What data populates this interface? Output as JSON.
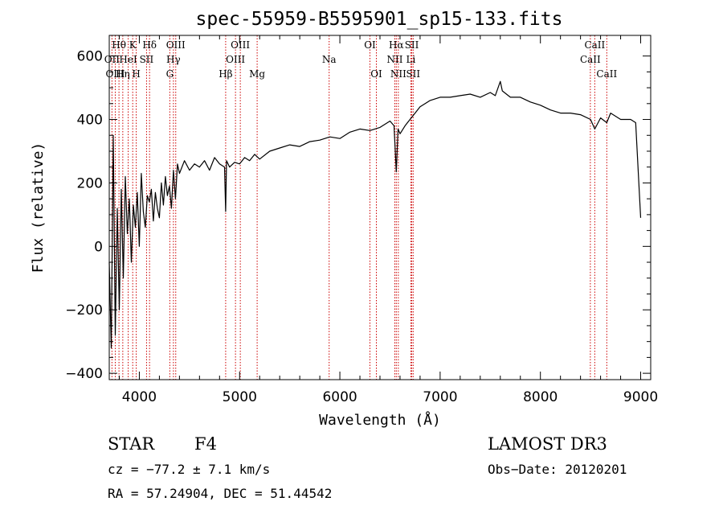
{
  "chart_data": {
    "type": "line",
    "title": "spec-55959-B5595901_sp15-133.fits",
    "xlabel": "Wavelength (Å)",
    "ylabel": "Flux (relative)",
    "xlim": [
      3700,
      9100
    ],
    "ylim": [
      -420,
      665
    ],
    "xticks": [
      4000,
      5000,
      6000,
      7000,
      8000,
      9000
    ],
    "yticks": [
      -400,
      -200,
      0,
      200,
      400,
      600
    ],
    "grid": false,
    "line_color": "#000000",
    "marker_color": "#cc0000",
    "series": [
      {
        "name": "flux",
        "x": [
          3700,
          3720,
          3740,
          3760,
          3780,
          3800,
          3820,
          3840,
          3860,
          3880,
          3900,
          3920,
          3940,
          3960,
          3980,
          4000,
          4020,
          4040,
          4060,
          4080,
          4100,
          4120,
          4140,
          4160,
          4180,
          4200,
          4220,
          4240,
          4260,
          4280,
          4300,
          4320,
          4340,
          4360,
          4380,
          4400,
          4450,
          4500,
          4550,
          4600,
          4650,
          4700,
          4750,
          4800,
          4850,
          4861,
          4870,
          4900,
          4950,
          5000,
          5050,
          5100,
          5150,
          5200,
          5300,
          5400,
          5500,
          5600,
          5700,
          5800,
          5900,
          6000,
          6100,
          6200,
          6300,
          6400,
          6500,
          6540,
          6563,
          6580,
          6600,
          6650,
          6700,
          6750,
          6800,
          6900,
          7000,
          7100,
          7200,
          7300,
          7400,
          7500,
          7550,
          7600,
          7620,
          7700,
          7800,
          7900,
          8000,
          8100,
          8200,
          8300,
          8400,
          8500,
          8542,
          8600,
          8662,
          8700,
          8800,
          8900,
          8950,
          9000
        ],
        "y": [
          -50,
          -320,
          350,
          -280,
          120,
          -200,
          180,
          -100,
          220,
          40,
          150,
          -50,
          130,
          60,
          170,
          0,
          230,
          110,
          60,
          160,
          140,
          180,
          80,
          170,
          120,
          90,
          200,
          130,
          220,
          160,
          190,
          120,
          240,
          150,
          260,
          230,
          270,
          240,
          260,
          250,
          270,
          240,
          280,
          260,
          250,
          110,
          270,
          250,
          265,
          260,
          280,
          270,
          290,
          275,
          300,
          310,
          320,
          315,
          330,
          335,
          345,
          340,
          360,
          370,
          365,
          375,
          395,
          380,
          235,
          370,
          355,
          380,
          400,
          420,
          440,
          460,
          470,
          470,
          475,
          480,
          470,
          485,
          475,
          520,
          490,
          470,
          470,
          455,
          445,
          430,
          420,
          420,
          415,
          400,
          370,
          405,
          390,
          420,
          400,
          400,
          390,
          90
        ]
      }
    ],
    "lines": [
      {
        "label": "Hθ",
        "x": 3797,
        "row": 1
      },
      {
        "label": "OII",
        "x": 3727,
        "row": 2
      },
      {
        "label": "OIII",
        "x": 3760,
        "row": 3
      },
      {
        "label": "Hη",
        "x": 3835,
        "row": 3
      },
      {
        "label": "HeI",
        "x": 3889,
        "row": 2
      },
      {
        "label": "K",
        "x": 3934,
        "row": 1
      },
      {
        "label": "H",
        "x": 3969,
        "row": 3
      },
      {
        "label": "SII",
        "x": 4072,
        "row": 2
      },
      {
        "label": "Hδ",
        "x": 4102,
        "row": 1
      },
      {
        "label": "OIII",
        "x": 4363,
        "row": 1
      },
      {
        "label": "Hγ",
        "x": 4340,
        "row": 2
      },
      {
        "label": "G",
        "x": 4304,
        "row": 3
      },
      {
        "label": "OIII",
        "x": 5007,
        "row": 1
      },
      {
        "label": "OIII",
        "x": 4959,
        "row": 2
      },
      {
        "label": "Hβ",
        "x": 4861,
        "row": 3
      },
      {
        "label": "Mg",
        "x": 5175,
        "row": 3
      },
      {
        "label": "Na",
        "x": 5893,
        "row": 2
      },
      {
        "label": "OI",
        "x": 6300,
        "row": 1
      },
      {
        "label": "OI",
        "x": 6364,
        "row": 3
      },
      {
        "label": "Hα",
        "x": 6563,
        "row": 1
      },
      {
        "label": "NII",
        "x": 6548,
        "row": 2
      },
      {
        "label": "NII",
        "x": 6583,
        "row": 3
      },
      {
        "label": "SII",
        "x": 6717,
        "row": 1
      },
      {
        "label": "Li",
        "x": 6708,
        "row": 2
      },
      {
        "label": "SII",
        "x": 6731,
        "row": 3
      },
      {
        "label": "CaII",
        "x": 8542,
        "row": 1
      },
      {
        "label": "CaII",
        "x": 8498,
        "row": 2
      },
      {
        "label": "CaII",
        "x": 8662,
        "row": 3
      }
    ]
  },
  "info": {
    "class": "STAR",
    "subclass": "F4",
    "survey": "LAMOST DR3",
    "cz": "cz = −77.2 ± 7.1 km/s",
    "obs_date": "Obs−Date: 20120201",
    "coords": "RA =  57.24904, DEC =  51.44542"
  }
}
